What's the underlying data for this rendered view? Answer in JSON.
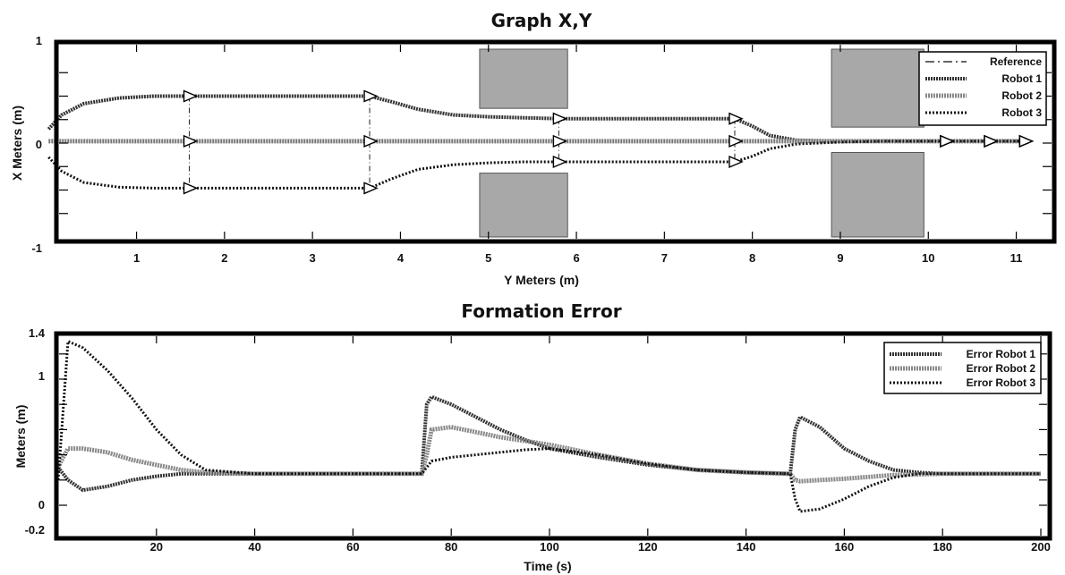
{
  "chart_data": [
    {
      "type": "line",
      "title": "Graph X,Y",
      "xlabel": "Y Meters (m)",
      "ylabel": "X Meters (m)",
      "xlim": [
        0,
        11.6
      ],
      "ylim": [
        -1,
        1
      ],
      "xticks": [
        "1",
        "2",
        "3",
        "4",
        "5",
        "6",
        "7",
        "8",
        "9",
        "10",
        "11"
      ],
      "yticks": [
        "1",
        "0",
        "-1"
      ],
      "legend": [
        "Reference",
        "Robot 1",
        "Robot 2",
        "Robot 3"
      ],
      "legend_position": "top-right",
      "obstacles": [
        {
          "x": [
            4.9,
            5.9
          ],
          "y": [
            0.37,
            1
          ]
        },
        {
          "x": [
            4.9,
            5.9
          ],
          "y": [
            -1,
            -0.32
          ]
        },
        {
          "x": [
            8.9,
            9.95
          ],
          "y": [
            0.17,
            1
          ]
        },
        {
          "x": [
            8.9,
            9.95
          ],
          "y": [
            -1,
            -0.1
          ]
        }
      ],
      "series": [
        {
          "name": "Robot 1",
          "x": [
            0,
            0.15,
            0.4,
            0.8,
            1.2,
            1.6,
            2.0,
            2.6,
            3.2,
            3.65,
            3.9,
            4.2,
            4.6,
            5.0,
            5.4,
            5.8,
            6.2,
            6.8,
            7.3,
            7.8,
            8.0,
            8.2,
            8.5,
            9.0,
            9.5,
            10.2,
            10.7,
            11.1
          ],
          "y": [
            0.15,
            0.3,
            0.42,
            0.48,
            0.5,
            0.5,
            0.5,
            0.5,
            0.5,
            0.5,
            0.44,
            0.36,
            0.3,
            0.28,
            0.27,
            0.26,
            0.26,
            0.26,
            0.26,
            0.26,
            0.18,
            0.08,
            0.03,
            0.02,
            0.02,
            0.02,
            0.02,
            0.02
          ]
        },
        {
          "name": "Robot 2",
          "x": [
            0,
            0.5,
            1.0,
            1.6,
            2.5,
            3.65,
            4.5,
            5.8,
            7.0,
            7.8,
            8.5,
            9.5,
            10.2,
            10.7,
            11.1
          ],
          "y": [
            0.02,
            0.02,
            0.02,
            0.02,
            0.02,
            0.02,
            0.02,
            0.02,
            0.02,
            0.02,
            0.02,
            0.02,
            0.02,
            0.02,
            0.02
          ]
        },
        {
          "name": "Robot 3",
          "x": [
            0,
            0.15,
            0.4,
            0.8,
            1.2,
            1.6,
            2.0,
            2.6,
            3.2,
            3.65,
            3.9,
            4.2,
            4.6,
            5.0,
            5.4,
            5.8,
            6.2,
            6.8,
            7.3,
            7.8,
            8.0,
            8.2,
            8.5,
            9.0,
            9.5,
            10.2,
            10.7,
            11.1
          ],
          "y": [
            -0.15,
            -0.3,
            -0.42,
            -0.47,
            -0.48,
            -0.48,
            -0.48,
            -0.48,
            -0.48,
            -0.48,
            -0.38,
            -0.28,
            -0.23,
            -0.21,
            -0.2,
            -0.2,
            -0.2,
            -0.2,
            -0.2,
            -0.2,
            -0.14,
            -0.06,
            -0.01,
            0.01,
            0.02,
            0.02,
            0.02,
            0.02
          ]
        }
      ],
      "formation_points": [
        {
          "x": [
            1.6,
            1.6,
            1.6
          ],
          "y": [
            0.5,
            0.02,
            -0.48
          ]
        },
        {
          "x": [
            3.65,
            3.65,
            3.65
          ],
          "y": [
            0.5,
            0.02,
            -0.48
          ]
        },
        {
          "x": [
            5.8,
            5.8,
            5.8
          ],
          "y": [
            0.26,
            0.02,
            -0.2
          ]
        },
        {
          "x": [
            7.8,
            7.8,
            7.8
          ],
          "y": [
            0.26,
            0.02,
            -0.2
          ]
        },
        {
          "x": [
            10.2,
            10.2,
            10.2
          ],
          "y": [
            0.02,
            0.02,
            0.02
          ]
        },
        {
          "x": [
            10.7,
            10.7,
            10.7
          ],
          "y": [
            0.02,
            0.02,
            0.02
          ]
        },
        {
          "x": [
            11.1,
            11.1,
            11.1
          ],
          "y": [
            0.02,
            0.02,
            0.02
          ]
        }
      ]
    },
    {
      "type": "line",
      "title": "Formation Error",
      "xlabel": "Time (s)",
      "ylabel": "Meters (m)",
      "xlim": [
        0,
        200
      ],
      "ylim": [
        -0.2,
        1.4
      ],
      "xticks": [
        "20",
        "40",
        "60",
        "80",
        "100",
        "120",
        "140",
        "160",
        "180",
        "200"
      ],
      "yticks": [
        "1.4",
        "1",
        "0",
        "-0.2"
      ],
      "legend": [
        "Error Robot 1",
        "Error Robot 2",
        "Error Robot 3"
      ],
      "legend_position": "top-right",
      "series": [
        {
          "name": "Error Robot 1",
          "x": [
            0,
            2,
            5,
            10,
            15,
            20,
            25,
            30,
            40,
            60,
            74,
            75,
            76,
            80,
            85,
            90,
            95,
            100,
            110,
            120,
            130,
            140,
            149,
            150,
            151,
            155,
            160,
            165,
            170,
            175,
            180,
            190,
            200
          ],
          "y": [
            0.3,
            0.2,
            0.12,
            0.15,
            0.2,
            0.23,
            0.25,
            0.25,
            0.25,
            0.25,
            0.25,
            0.8,
            0.86,
            0.8,
            0.7,
            0.6,
            0.52,
            0.45,
            0.38,
            0.32,
            0.28,
            0.26,
            0.25,
            0.6,
            0.7,
            0.62,
            0.45,
            0.35,
            0.28,
            0.26,
            0.25,
            0.25,
            0.25
          ]
        },
        {
          "name": "Error Robot 2",
          "x": [
            0,
            1,
            2,
            5,
            10,
            15,
            20,
            25,
            30,
            40,
            60,
            74,
            75,
            76,
            80,
            85,
            90,
            95,
            100,
            110,
            120,
            130,
            140,
            149,
            150,
            151,
            155,
            160,
            170,
            180,
            190,
            200
          ],
          "y": [
            0.3,
            0.38,
            0.45,
            0.45,
            0.42,
            0.36,
            0.32,
            0.28,
            0.26,
            0.25,
            0.25,
            0.25,
            0.4,
            0.6,
            0.62,
            0.58,
            0.54,
            0.51,
            0.48,
            0.4,
            0.33,
            0.28,
            0.26,
            0.25,
            0.2,
            0.19,
            0.2,
            0.21,
            0.24,
            0.25,
            0.25,
            0.25
          ]
        },
        {
          "name": "Error Robot 3",
          "x": [
            0,
            2,
            5,
            10,
            15,
            20,
            25,
            30,
            40,
            60,
            74,
            75,
            76,
            80,
            85,
            90,
            95,
            100,
            110,
            120,
            130,
            140,
            149,
            150,
            151,
            155,
            160,
            165,
            170,
            175,
            180,
            190,
            200
          ],
          "y": [
            0.2,
            1.3,
            1.25,
            1.07,
            0.85,
            0.6,
            0.4,
            0.28,
            0.25,
            0.25,
            0.25,
            0.3,
            0.35,
            0.38,
            0.4,
            0.42,
            0.44,
            0.45,
            0.4,
            0.33,
            0.28,
            0.26,
            0.25,
            0.05,
            -0.05,
            -0.03,
            0.05,
            0.15,
            0.22,
            0.25,
            0.25,
            0.25,
            0.25
          ]
        }
      ]
    }
  ]
}
